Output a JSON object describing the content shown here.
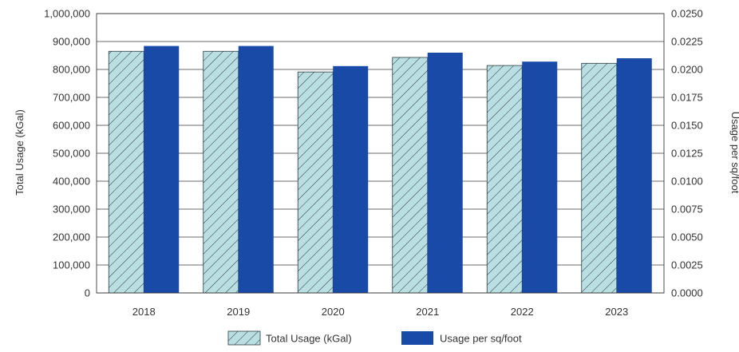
{
  "chart_data": {
    "type": "bar",
    "categories": [
      "2018",
      "2019",
      "2020",
      "2021",
      "2022",
      "2023"
    ],
    "series": [
      {
        "name": "Total Usage (kGal)",
        "axis": "left",
        "values": [
          865000,
          865000,
          791000,
          843000,
          814000,
          822000
        ],
        "color": "#b9dfe3",
        "pattern": "diagonal-hatch"
      },
      {
        "name": "Usage per sq/foot",
        "axis": "right",
        "values": [
          0.0221,
          0.0221,
          0.0203,
          0.0215,
          0.0207,
          0.021
        ],
        "color": "#1a4aa8"
      }
    ],
    "ylabel": "Total Usage (kGal)",
    "y2label": "Usage per sq/foot",
    "ylim": [
      0,
      1000000
    ],
    "y2lim": [
      0,
      0.025
    ],
    "yticks": [
      "0",
      "100,000",
      "200,000",
      "300,000",
      "400,000",
      "500,000",
      "600,000",
      "700,000",
      "800,000",
      "900,000",
      "1,000,000"
    ],
    "y2ticks": [
      "0.0000",
      "0.0025",
      "0.0050",
      "0.0075",
      "0.0100",
      "0.0125",
      "0.0150",
      "0.0175",
      "0.0200",
      "0.0225",
      "0.0250"
    ],
    "grid": true,
    "legend": "bottom-center"
  }
}
